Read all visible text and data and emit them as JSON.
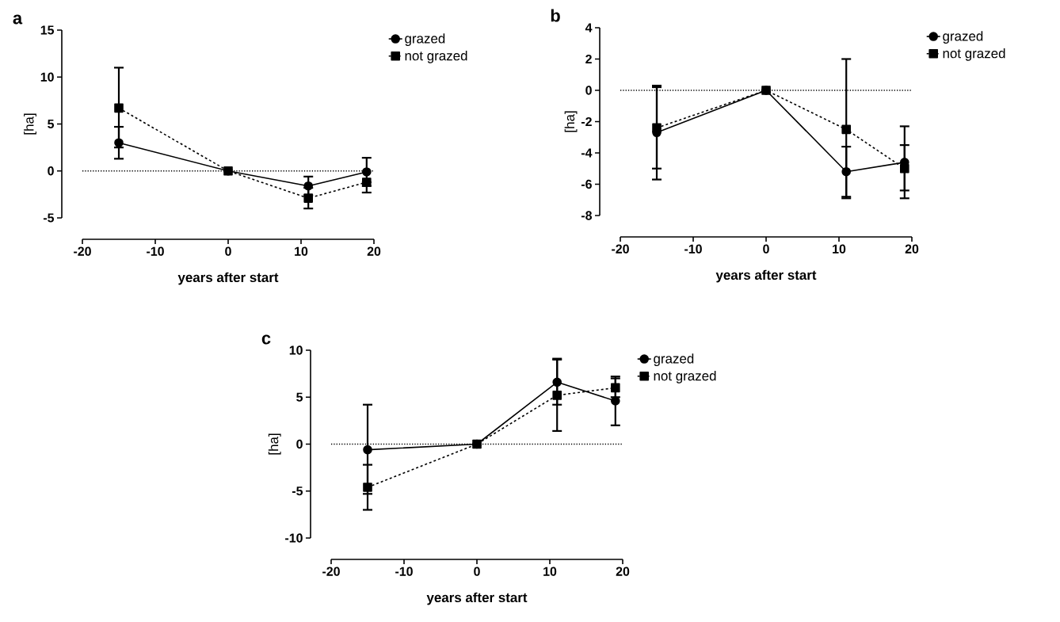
{
  "chart_data": [
    {
      "type": "line",
      "title": "a",
      "xlabel": "years after start",
      "ylabel": "[ha]",
      "x": [
        -15,
        0,
        11,
        19
      ],
      "xlim": [
        -20,
        20
      ],
      "xticks": [
        -20,
        -10,
        0,
        10,
        20
      ],
      "ylim": [
        -5,
        15
      ],
      "yticks": [
        -5,
        0,
        5,
        10,
        15
      ],
      "legend": "top right",
      "ref_lines": [
        {
          "axis": "y",
          "value": 0,
          "line_style": "dotted"
        }
      ],
      "series": [
        {
          "name": "grazed",
          "color": "#000000",
          "marker": "circle",
          "line_style": "solid",
          "values": [
            3.0,
            0,
            -1.6,
            -0.1
          ],
          "errors": [
            [
              1.3,
              4.7
            ],
            null,
            [
              -2.6,
              -0.6
            ],
            [
              -1.6,
              1.4
            ]
          ]
        },
        {
          "name": "not grazed",
          "color": "#000000",
          "marker": "square",
          "line_style": "dashed",
          "values": [
            6.7,
            0,
            -2.9,
            -1.2
          ],
          "errors": [
            [
              2.5,
              11.0
            ],
            null,
            [
              -4.0,
              -1.8
            ],
            [
              -2.3,
              -1.2
            ]
          ]
        }
      ]
    },
    {
      "type": "line",
      "title": "b",
      "xlabel": "years after start",
      "ylabel": "[ha]",
      "x": [
        -15,
        0,
        11,
        19
      ],
      "xlim": [
        -20,
        20
      ],
      "xticks": [
        -20,
        -10,
        0,
        10,
        20
      ],
      "ylim": [
        -8,
        4
      ],
      "yticks": [
        -8,
        -6,
        -4,
        -2,
        0,
        2,
        4
      ],
      "legend": "top right",
      "ref_lines": [
        {
          "axis": "y",
          "value": 0,
          "line_style": "dotted"
        }
      ],
      "series": [
        {
          "name": "grazed",
          "color": "#000000",
          "marker": "circle",
          "line_style": "solid",
          "values": [
            -2.7,
            0,
            -5.2,
            -4.6
          ],
          "errors": [
            [
              -5.7,
              0.3
            ],
            null,
            [
              -6.8,
              -3.6
            ],
            [
              -6.9,
              -2.3
            ]
          ]
        },
        {
          "name": "not grazed",
          "color": "#000000",
          "marker": "square",
          "line_style": "dashed",
          "values": [
            -2.4,
            0,
            -2.5,
            -5.0
          ],
          "errors": [
            [
              -5.0,
              0.2
            ],
            null,
            [
              -6.9,
              2.0
            ],
            [
              -6.4,
              -3.5
            ]
          ]
        }
      ]
    },
    {
      "type": "line",
      "title": "c",
      "xlabel": "years after start",
      "ylabel": "[ha]",
      "x": [
        -15,
        0,
        11,
        19
      ],
      "xlim": [
        -20,
        20
      ],
      "xticks": [
        -20,
        -10,
        0,
        10,
        20
      ],
      "ylim": [
        -10,
        10
      ],
      "yticks": [
        -10,
        -5,
        0,
        5,
        10
      ],
      "legend": "top right",
      "ref_lines": [
        {
          "axis": "y",
          "value": 0,
          "line_style": "dotted"
        }
      ],
      "series": [
        {
          "name": "grazed",
          "color": "#000000",
          "marker": "circle",
          "line_style": "solid",
          "values": [
            -0.6,
            0,
            6.6,
            4.6
          ],
          "errors": [
            [
              -5.3,
              4.2
            ],
            null,
            [
              4.2,
              9.1
            ],
            [
              2.0,
              7.2
            ]
          ]
        },
        {
          "name": "not grazed",
          "color": "#000000",
          "marker": "square",
          "line_style": "dashed",
          "values": [
            -4.6,
            0,
            5.2,
            6.0
          ],
          "errors": [
            [
              -7.0,
              -2.2
            ],
            null,
            [
              1.4,
              9.0
            ],
            [
              5.0,
              7.0
            ]
          ]
        }
      ]
    }
  ]
}
